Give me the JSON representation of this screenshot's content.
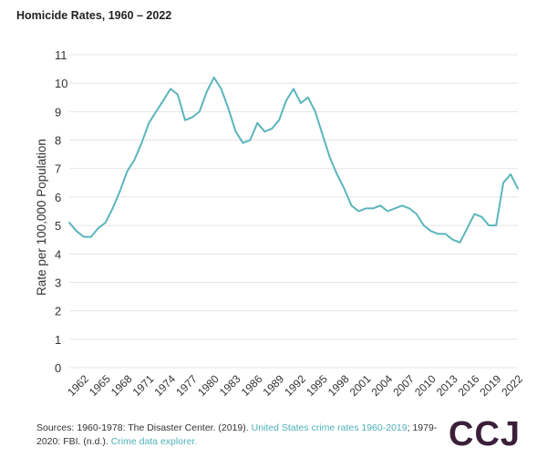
{
  "chart_data": {
    "type": "line",
    "title": "Homicide Rates, 1960 – 2022",
    "xlabel": "",
    "ylabel": "Rate per 100,000 Population",
    "ylim": [
      0,
      11
    ],
    "yticks": [
      0,
      1,
      2,
      3,
      4,
      5,
      6,
      7,
      8,
      9,
      10,
      11
    ],
    "xticks": [
      1962,
      1965,
      1968,
      1971,
      1974,
      1977,
      1980,
      1983,
      1986,
      1989,
      1992,
      1995,
      1998,
      2001,
      2004,
      2007,
      2010,
      2013,
      2016,
      2019,
      2022
    ],
    "grid": true,
    "line_color": "#5bb5bd",
    "series": [
      {
        "name": "Homicide rate",
        "x": [
          1960,
          1961,
          1962,
          1963,
          1964,
          1965,
          1966,
          1967,
          1968,
          1969,
          1970,
          1971,
          1972,
          1973,
          1974,
          1975,
          1976,
          1977,
          1978,
          1979,
          1980,
          1981,
          1982,
          1983,
          1984,
          1985,
          1986,
          1987,
          1988,
          1989,
          1990,
          1991,
          1992,
          1993,
          1994,
          1995,
          1996,
          1997,
          1998,
          1999,
          2000,
          2001,
          2002,
          2003,
          2004,
          2005,
          2006,
          2007,
          2008,
          2009,
          2010,
          2011,
          2012,
          2013,
          2014,
          2015,
          2016,
          2017,
          2018,
          2019,
          2020,
          2021,
          2022
        ],
        "values": [
          5.1,
          4.8,
          4.6,
          4.6,
          4.9,
          5.1,
          5.6,
          6.2,
          6.9,
          7.3,
          7.9,
          8.6,
          9.0,
          9.4,
          9.8,
          9.6,
          8.7,
          8.8,
          9.0,
          9.7,
          10.2,
          9.8,
          9.1,
          8.3,
          7.9,
          8.0,
          8.6,
          8.3,
          8.4,
          8.7,
          9.4,
          9.8,
          9.3,
          9.5,
          9.0,
          8.2,
          7.4,
          6.8,
          6.3,
          5.7,
          5.5,
          5.6,
          5.6,
          5.7,
          5.5,
          5.6,
          5.7,
          5.6,
          5.4,
          5.0,
          4.8,
          4.7,
          4.7,
          4.5,
          4.4,
          4.9,
          5.4,
          5.3,
          5.0,
          5.0,
          6.5,
          6.8,
          6.3
        ]
      }
    ]
  },
  "footer": {
    "sources_prefix": "Sources: 1960-1978: The Disaster Center. (2019). ",
    "link1": "United States crime rates 1960-2019",
    "sources_middle": "; 1979-2020: FBI. (n.d.). ",
    "link2": "Crime data explorer.",
    "logo": "CCJ"
  }
}
